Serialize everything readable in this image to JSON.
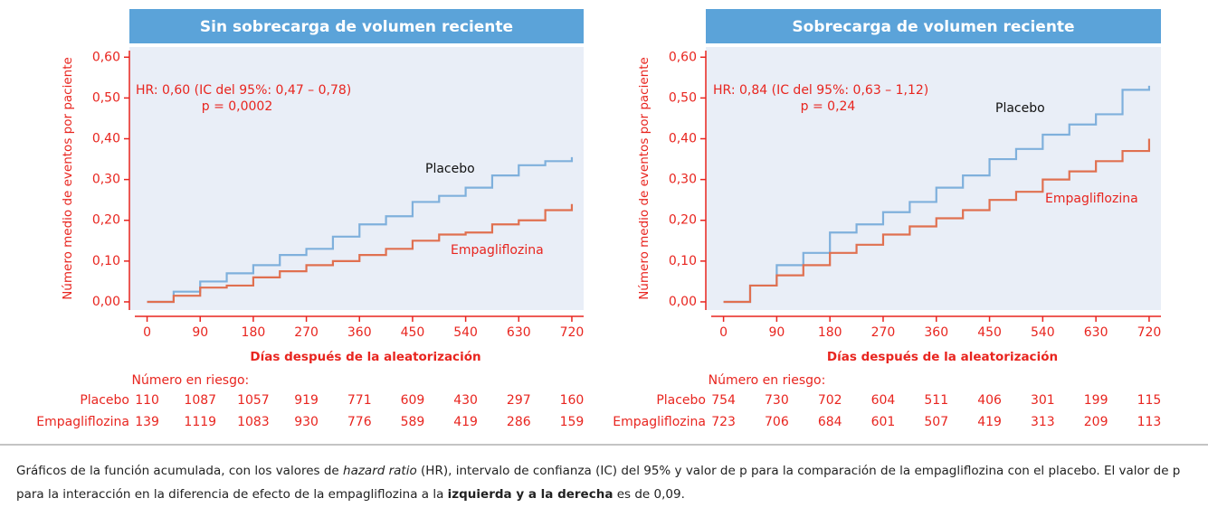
{
  "chart_data": [
    {
      "type": "line",
      "title": "Sin sobrecarga de volumen reciente",
      "xlabel": "Días después de la aleatorización",
      "ylabel": "Número medio de eventos por paciente",
      "annotations": [
        "HR: 0,60 (IC del 95%: 0,47 – 0,78)",
        "p = 0,0002"
      ],
      "x": [
        0,
        45,
        90,
        135,
        180,
        225,
        270,
        315,
        360,
        405,
        450,
        495,
        540,
        585,
        630,
        675,
        720
      ],
      "series": [
        {
          "name": "Placebo",
          "color": "#7fb0dc",
          "values": [
            0,
            0.025,
            0.05,
            0.07,
            0.09,
            0.115,
            0.13,
            0.16,
            0.19,
            0.21,
            0.245,
            0.26,
            0.28,
            0.31,
            0.335,
            0.345,
            0.355
          ]
        },
        {
          "name": "Empagliflozina",
          "color": "#e07050",
          "values": [
            0,
            0.015,
            0.035,
            0.04,
            0.06,
            0.075,
            0.09,
            0.1,
            0.115,
            0.13,
            0.15,
            0.165,
            0.17,
            0.19,
            0.2,
            0.225,
            0.24
          ]
        }
      ],
      "xlim": [
        -30,
        740
      ],
      "ylim": [
        -0.02,
        0.625
      ],
      "xticks": [
        0,
        90,
        180,
        270,
        360,
        450,
        540,
        630,
        720
      ],
      "yticks": [
        {
          "value": 0,
          "label": "0,00"
        },
        {
          "value": 0.1,
          "label": "0,10"
        },
        {
          "value": 0.2,
          "label": "0,20"
        },
        {
          "value": 0.3,
          "label": "0,30"
        },
        {
          "value": 0.4,
          "label": "0,40"
        },
        {
          "value": 0.5,
          "label": "0,50"
        },
        {
          "value": 0.6,
          "label": "0,60"
        }
      ],
      "risk_table": {
        "title": "Número en riesgo:",
        "rows": [
          {
            "label": "Placebo",
            "values": [
              110,
              1087,
              1057,
              919,
              771,
              609,
              430,
              297,
              160
            ]
          },
          {
            "label": "Empagliflozina",
            "values": [
              139,
              1119,
              1083,
              930,
              776,
              589,
              419,
              286,
              159
            ]
          }
        ]
      }
    },
    {
      "type": "line",
      "title": "Sobrecarga de volumen reciente",
      "xlabel": "Días después de la aleatorización",
      "ylabel": "Número medio de eventos por paciente",
      "annotations": [
        "HR: 0,84 (IC del 95%: 0,63 – 1,12)",
        "p = 0,24"
      ],
      "x": [
        0,
        45,
        90,
        135,
        180,
        225,
        270,
        315,
        360,
        405,
        450,
        495,
        540,
        585,
        630,
        675,
        720
      ],
      "series": [
        {
          "name": "Placebo",
          "color": "#7fb0dc",
          "values": [
            0,
            0.04,
            0.09,
            0.12,
            0.17,
            0.19,
            0.22,
            0.245,
            0.28,
            0.31,
            0.35,
            0.375,
            0.41,
            0.435,
            0.46,
            0.52,
            0.53
          ]
        },
        {
          "name": "Empagliflozina",
          "color": "#e07050",
          "values": [
            0,
            0.04,
            0.065,
            0.09,
            0.12,
            0.14,
            0.165,
            0.185,
            0.205,
            0.225,
            0.25,
            0.27,
            0.3,
            0.32,
            0.345,
            0.37,
            0.4
          ]
        }
      ],
      "xlim": [
        -30,
        740
      ],
      "ylim": [
        -0.02,
        0.625
      ],
      "xticks": [
        0,
        90,
        180,
        270,
        360,
        450,
        540,
        630,
        720
      ],
      "yticks": [
        {
          "value": 0,
          "label": "0,00"
        },
        {
          "value": 0.1,
          "label": "0,10"
        },
        {
          "value": 0.2,
          "label": "0,20"
        },
        {
          "value": 0.3,
          "label": "0,30"
        },
        {
          "value": 0.4,
          "label": "0,40"
        },
        {
          "value": 0.5,
          "label": "0,50"
        },
        {
          "value": 0.6,
          "label": "0,60"
        }
      ],
      "risk_table": {
        "title": "Número en riesgo:",
        "rows": [
          {
            "label": "Placebo",
            "values": [
              754,
              730,
              702,
              604,
              511,
              406,
              301,
              199,
              115
            ]
          },
          {
            "label": "Empagliflozina",
            "values": [
              723,
              706,
              684,
              601,
              507,
              419,
              313,
              209,
              113
            ]
          }
        ]
      }
    }
  ],
  "caption": [
    "Gráficos de la función acumulada, con los valores de ",
    "hazard ratio",
    " (HR), intervalo de confianza (IC) del 95% y valor de p para la comparación de la empagliflozina con el placebo. El valor de p para la interacción en la diferencia de efecto de la empagliflozina a la ",
    "izquierda y a la derecha",
    " es de 0,09."
  ]
}
